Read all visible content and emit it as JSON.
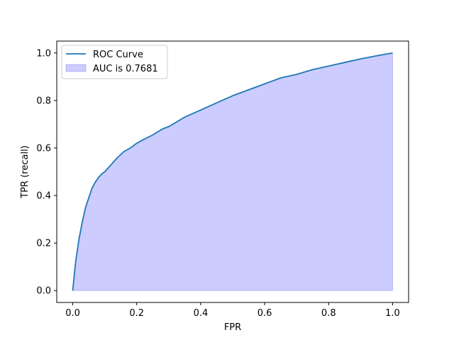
{
  "chart_data": {
    "type": "area",
    "title": "",
    "xlabel": "FPR",
    "ylabel": "TPR (recall)",
    "xlim": [
      -0.05,
      1.05
    ],
    "ylim": [
      -0.05,
      1.05
    ],
    "xticks": [
      0.0,
      0.2,
      0.4,
      0.6,
      0.8,
      1.0
    ],
    "yticks": [
      0.0,
      0.2,
      0.4,
      0.6,
      0.8,
      1.0
    ],
    "xtick_labels": [
      "0.0",
      "0.2",
      "0.4",
      "0.6",
      "0.8",
      "1.0"
    ],
    "ytick_labels": [
      "0.0",
      "0.2",
      "0.4",
      "0.6",
      "0.8",
      "1.0"
    ],
    "grid": false,
    "legend_position": "upper-left",
    "series": [
      {
        "name": "ROC Curve",
        "kind": "line",
        "color": "#1f77b4",
        "x": [
          0.0,
          0.005,
          0.01,
          0.02,
          0.03,
          0.04,
          0.05,
          0.06,
          0.07,
          0.08,
          0.09,
          0.1,
          0.12,
          0.14,
          0.16,
          0.18,
          0.2,
          0.22,
          0.25,
          0.28,
          0.3,
          0.35,
          0.4,
          0.45,
          0.5,
          0.55,
          0.6,
          0.65,
          0.7,
          0.75,
          0.8,
          0.85,
          0.9,
          0.95,
          1.0
        ],
        "y": [
          0.0,
          0.07,
          0.13,
          0.22,
          0.29,
          0.35,
          0.39,
          0.43,
          0.455,
          0.475,
          0.49,
          0.5,
          0.53,
          0.56,
          0.585,
          0.6,
          0.62,
          0.635,
          0.655,
          0.68,
          0.69,
          0.73,
          0.76,
          0.79,
          0.82,
          0.845,
          0.87,
          0.895,
          0.91,
          0.93,
          0.945,
          0.96,
          0.975,
          0.988,
          1.0
        ]
      }
    ],
    "fill": {
      "name": "AUC is 0.7681",
      "color": "#0000ff",
      "alpha": 0.2
    }
  }
}
